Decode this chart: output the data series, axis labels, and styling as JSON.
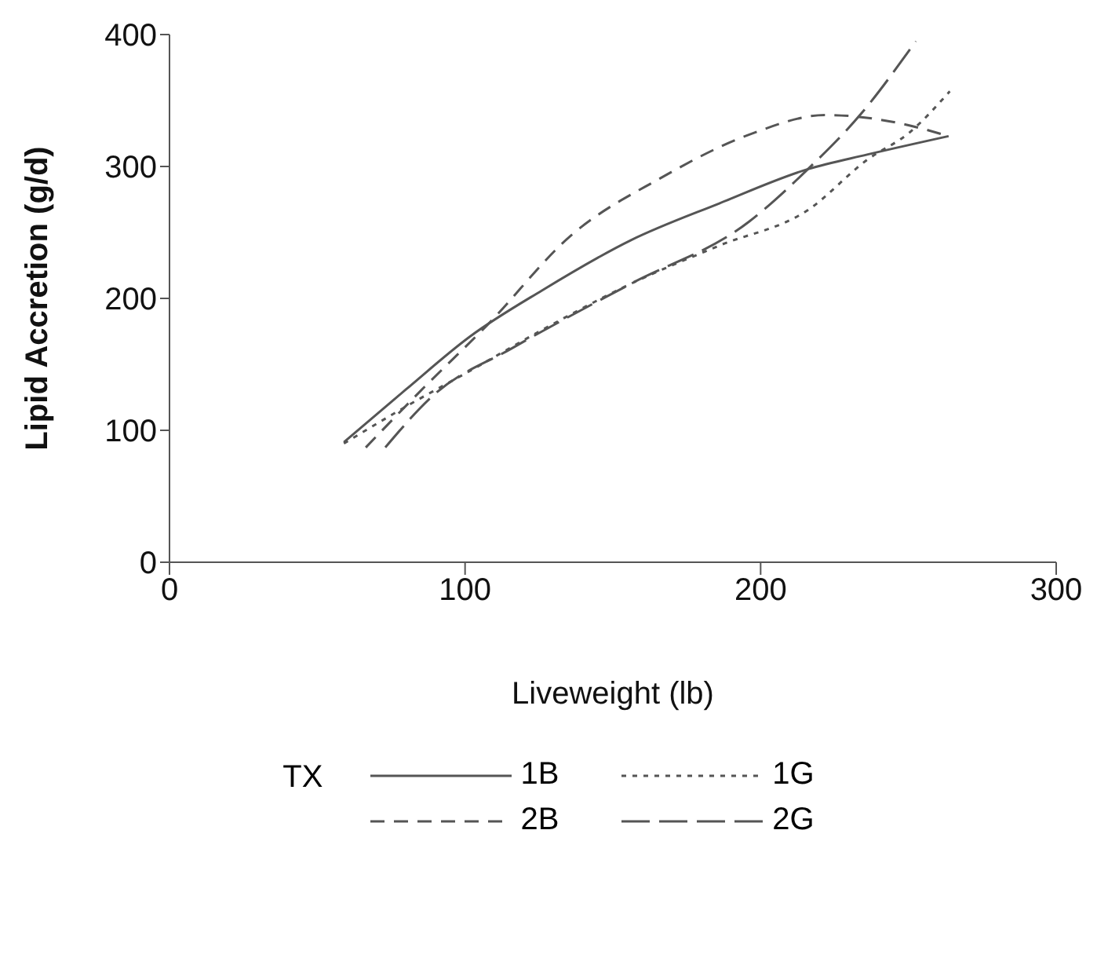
{
  "chart_data": {
    "type": "line",
    "xlabel": "Liveweight (lb)",
    "ylabel": "Lipid Accretion (g/d)",
    "legend_title": "TX",
    "legend": "bottom",
    "marker": "none",
    "xlim": [
      0,
      300
    ],
    "xticks": [
      0,
      100,
      200,
      300
    ],
    "ylim": [
      0,
      400
    ],
    "yticks": [
      0,
      100,
      200,
      300,
      400
    ],
    "series": [
      {
        "name": "1B",
        "color": "#555555",
        "line_style": "solid",
        "x": [
          59,
          80,
          101.6,
          126,
          156,
          186,
          216,
          236,
          263.6
        ],
        "values": [
          91,
          131,
          171,
          206,
          244,
          272,
          298,
          309,
          323
        ]
      },
      {
        "name": "1G",
        "color": "#555555",
        "line_style": "dotted",
        "x": [
          59,
          80,
          101.6,
          126,
          156,
          186,
          216,
          236,
          250.5,
          264
        ],
        "values": [
          90,
          118,
          145,
          176,
          211,
          240,
          267,
          305,
          326,
          357
        ]
      },
      {
        "name": "2B",
        "color": "#555555",
        "line_style": "dashed",
        "x": [
          66.4,
          85,
          107.6,
          136,
          166,
          196,
          222,
          246.5,
          263.6
        ],
        "values": [
          87,
          130,
          180,
          248,
          291,
          324,
          339,
          333,
          323
        ]
      },
      {
        "name": "2G",
        "color": "#555555",
        "line_style": "dashed",
        "x": [
          73,
          89.5,
          115.7,
          156,
          196,
          216,
          234,
          252.5
        ],
        "values": [
          87,
          127,
          162,
          211,
          258,
          298,
          340,
          395
        ]
      }
    ]
  }
}
